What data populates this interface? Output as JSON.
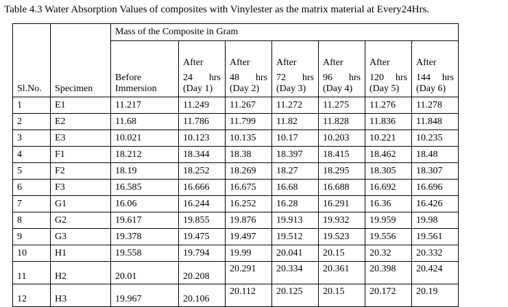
{
  "caption": "Table 4.3 Water Absorption Values of composites with Vinylester as the matrix material at Every24Hrs.",
  "group_header": "Mass of the Composite in Gram",
  "col_slno": "Sl.No.",
  "col_specimen": "Specimen",
  "col_before": [
    "Before",
    "Immersion"
  ],
  "after_cols": [
    {
      "after": "After",
      "num": "24",
      "unit": "hrs",
      "day": "(Day 1)"
    },
    {
      "after": "After",
      "num": "48",
      "unit": "hrs",
      "day": "(Day 2)"
    },
    {
      "after": "After",
      "num": "72",
      "unit": "hrs",
      "day": "(Day 3)"
    },
    {
      "after": "After",
      "num": "96",
      "unit": "hrs",
      "day": "(Day 4)"
    },
    {
      "after": "After",
      "num": "120",
      "unit": "hrs",
      "day": "(Day 5)"
    },
    {
      "after": "After",
      "num": "144",
      "unit": "hrs",
      "day": "(Day 6)"
    }
  ],
  "rows": [
    [
      "1",
      "E1",
      "11.217",
      "11.249",
      "11.267",
      "11.272",
      "11.275",
      "11.276",
      "11.278"
    ],
    [
      "2",
      "E2",
      "11.68",
      "11.786",
      "11.799",
      "11.82",
      "11.828",
      "11.836",
      "11.848"
    ],
    [
      "3",
      "E3",
      "10.021",
      "10.123",
      "10.135",
      "10.17",
      "10.203",
      "10.221",
      "10.235"
    ],
    [
      "4",
      "F1",
      "18.212",
      "18.344",
      "18.38",
      "18.397",
      "18.415",
      "18.462",
      "18.48"
    ],
    [
      "5",
      "F2",
      "18.19",
      "18.252",
      "18.269",
      "18.27",
      "18.295",
      "18.305",
      "18.307"
    ],
    [
      "6",
      "F3",
      "16.585",
      "16.666",
      "16.675",
      "16.68",
      "16.688",
      "16.692",
      "16.696"
    ],
    [
      "7",
      "G1",
      "16.06",
      "16.244",
      "16.252",
      "16.28",
      "16.291",
      "16.36",
      "16.426"
    ],
    [
      "8",
      "G2",
      "19.617",
      "19.855",
      "19.876",
      "19.913",
      "19.932",
      "19.959",
      "19.98"
    ],
    [
      "9",
      "G3",
      "19.378",
      "19.475",
      "19.497",
      "19.512",
      "19.523",
      "19.556",
      "19.561"
    ],
    [
      "10",
      "H1",
      "19.558",
      "19.794",
      "19.99",
      "20.041",
      "20.15",
      "20.32",
      "20.332"
    ],
    [
      "11",
      "H2",
      "20.01",
      "20.208",
      "20.291",
      "20.334",
      "20.361",
      "20.398",
      "20.424"
    ],
    [
      "12",
      "H3",
      "19.967",
      "20.106",
      "20.112",
      "20.125",
      "20.15",
      "20.172",
      "20.19"
    ]
  ]
}
